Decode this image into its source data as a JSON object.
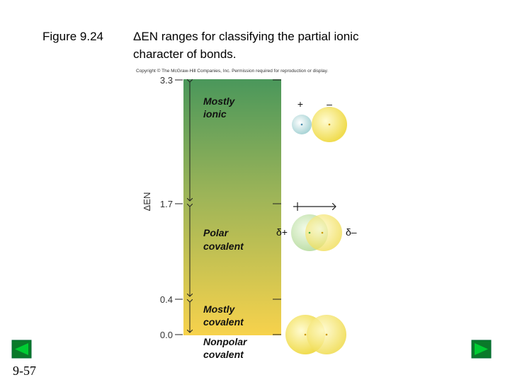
{
  "header": {
    "figure": "Figure 9.24",
    "title_lines": [
      "ΔEN ranges for classifying the partial ionic",
      "character of bonds."
    ]
  },
  "copyright": "Copyright © The McGraw-Hill Companies, Inc. Permission required for reproduction or display.",
  "axis_label": "ΔEN",
  "ticks": [
    "3.3",
    "1.7",
    "0.4",
    "0.0"
  ],
  "regions": [
    {
      "lines": [
        "Mostly",
        "ionic"
      ]
    },
    {
      "lines": [
        "Polar",
        "covalent"
      ]
    },
    {
      "lines": [
        "Mostly",
        "covalent"
      ]
    },
    {
      "lines": [
        "Nonpolar",
        "covalent"
      ]
    }
  ],
  "charges": {
    "ionic_plus": "+",
    "ionic_minus": "–",
    "polar_plus": "δ+",
    "polar_minus": "δ–"
  },
  "page_number": "9-57"
}
